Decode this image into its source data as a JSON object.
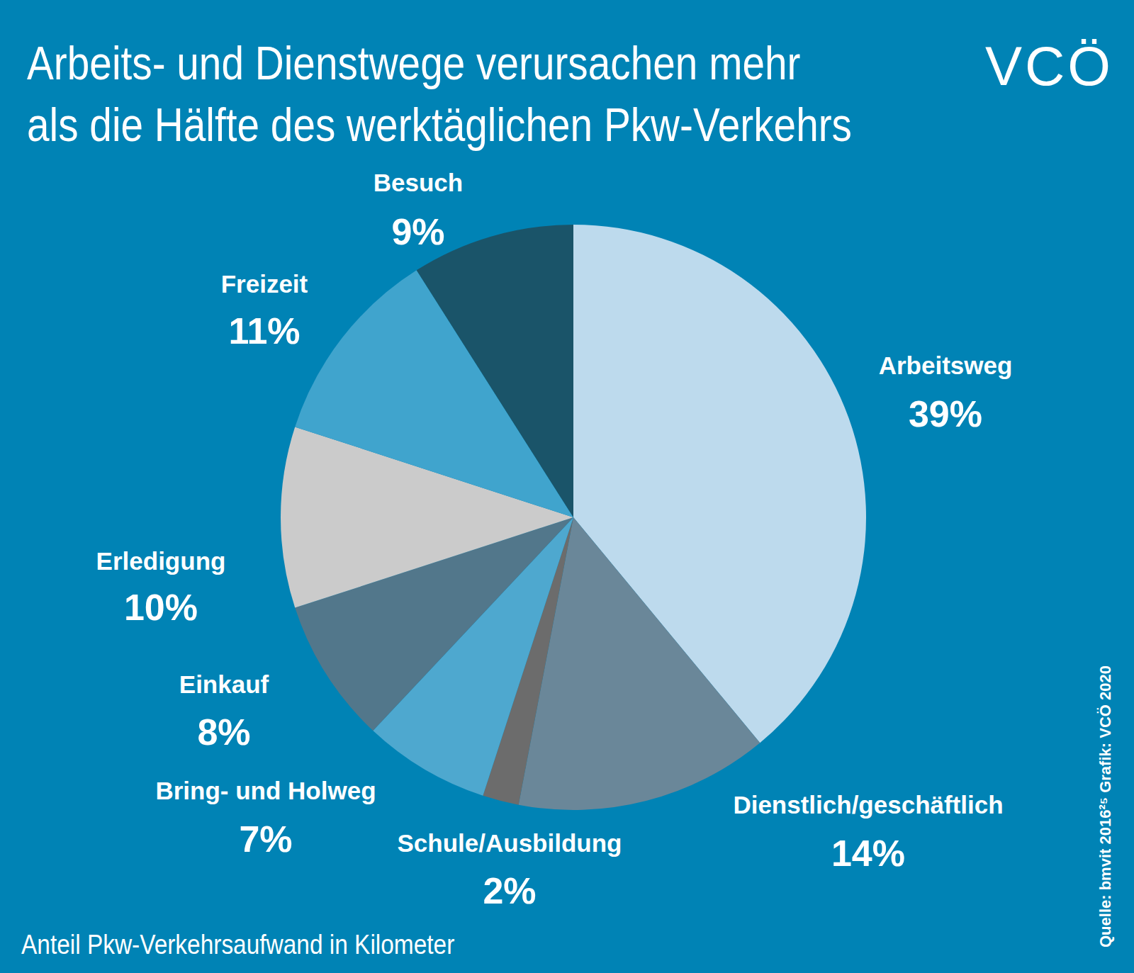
{
  "chart_data": {
    "type": "pie",
    "title": "Arbeits- und Dienstwege verursachen mehr\nals die Hälfte des werktäglichen Pkw-Verkehrs",
    "subtitle": "Anteil Pkw-Verkehrsaufwand in Kilometer",
    "source": "Quelle: bmvit 2016²⁵ Grafik: VCÖ 2020",
    "logo": "VCÖ",
    "categories": [
      "Arbeitsweg",
      "Dienstlich/geschäftlich",
      "Schule/Ausbildung",
      "Bring- und Holweg",
      "Einkauf",
      "Erledigung",
      "Freizeit",
      "Besuch"
    ],
    "values": [
      39,
      14,
      2,
      7,
      8,
      10,
      11,
      9
    ],
    "value_labels": [
      "39%",
      "14%",
      "2%",
      "7%",
      "8%",
      "10%",
      "11%",
      "9%"
    ],
    "colors": [
      "#bddaed",
      "#6a8799",
      "#6c6c6c",
      "#4ea8cf",
      "#52778b",
      "#cbcbcb",
      "#40a4cd",
      "#1a5469"
    ],
    "data_labels": true
  }
}
